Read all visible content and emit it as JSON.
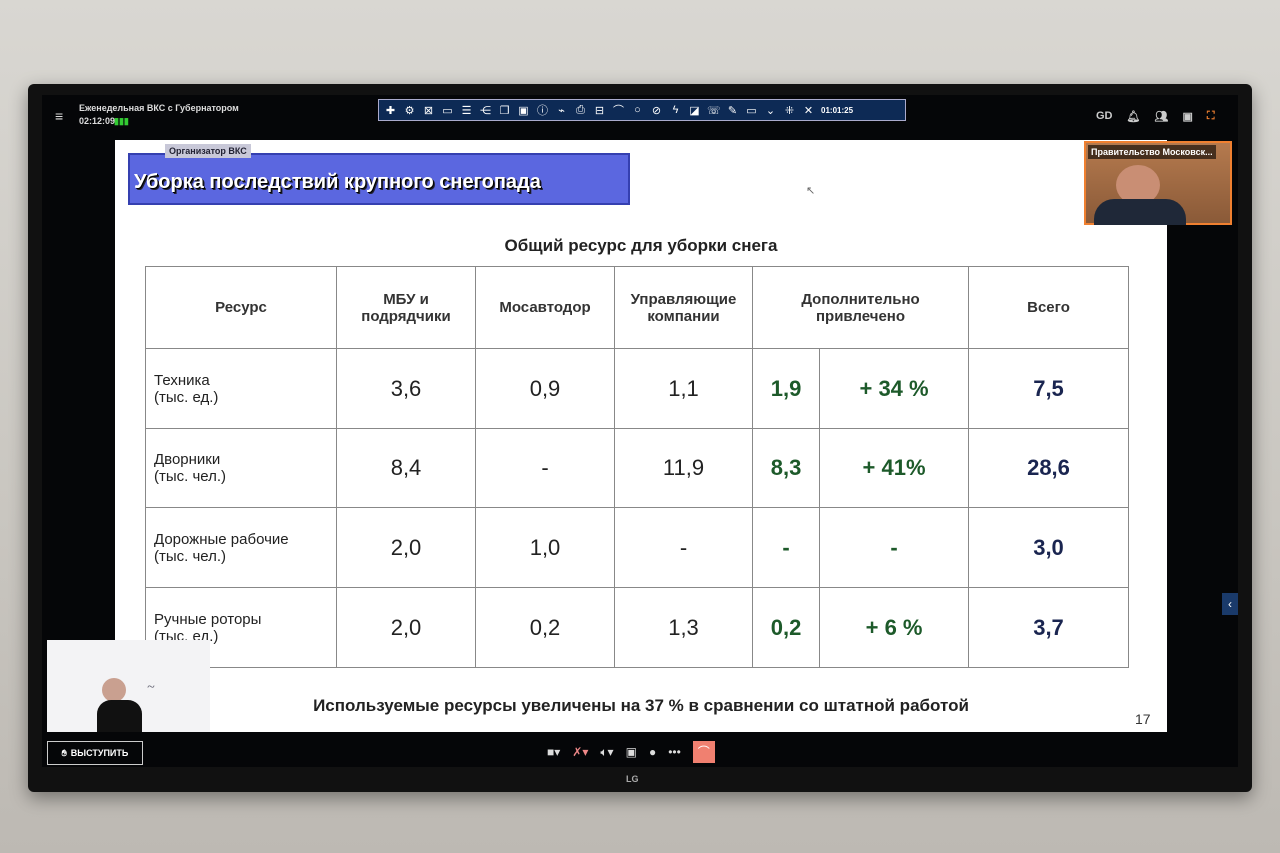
{
  "window": {
    "title": "Еженедельная ВКС с Губернатором",
    "elapsed": "02:12:09",
    "toolbar_timer": "01:01:25"
  },
  "toolbar_icons": [
    "move-icon",
    "settings-icon",
    "layout-icon",
    "folder-icon",
    "list-icon",
    "share-icon",
    "documents-icon",
    "calendar-icon",
    "info-icon",
    "plug-icon",
    "print-icon",
    "stack-icon",
    "signal-icon",
    "chat-icon",
    "mute-icon",
    "lightning-icon",
    "screen-icon",
    "phone-icon",
    "pointer-icon",
    "video-icon",
    "chevron-down-icon",
    "collapse-icon",
    "close-icon"
  ],
  "topright_icons": [
    "gd-icon",
    "bell-icon",
    "participants-icon",
    "display-icon",
    "fullscreen-icon"
  ],
  "organizer_label": "Организатор ВКС",
  "slide": {
    "title": "Уборка последствий крупного снегопада",
    "subtitle": "Общий ресурс для уборки снега",
    "headers": [
      "Ресурс",
      "МБУ и подрядчики",
      "Мосавтодор",
      "Управляющие компании",
      "Дополнительно привлечено",
      "Всего"
    ],
    "rows": [
      {
        "resource": "Техника (тыс. ед.)",
        "mbu": "3,6",
        "mosavtodor": "0,9",
        "uk": "1,1",
        "extra": "1,9",
        "extra_pct": "+ 34 %",
        "total": "7,5"
      },
      {
        "resource": "Дворники (тыс. чел.)",
        "mbu": "8,4",
        "mosavtodor": "-",
        "uk": "11,9",
        "extra": "8,3",
        "extra_pct": "+ 41%",
        "total": "28,6"
      },
      {
        "resource": "Дорожные рабочие (тыс. чел.)",
        "mbu": "2,0",
        "mosavtodor": "1,0",
        "uk": "-",
        "extra": "-",
        "extra_pct": "-",
        "total": "3,0"
      },
      {
        "resource": "Ручные роторы (тыс. ед.)",
        "mbu": "2,0",
        "mosavtodor": "0,2",
        "uk": "1,3",
        "extra": "0,2",
        "extra_pct": "+ 6 %",
        "total": "3,7"
      }
    ],
    "footnote": "Используемые ресурсы увеличены на 37 % в сравнении со штатной работой",
    "page": "17"
  },
  "participant": {
    "name": "Правительство Московск..."
  },
  "speak_button": "ВЫСТУПИТЬ",
  "brand": "LG",
  "colors": {
    "title_bg": "#5b67e0",
    "green": "#1d5a2a",
    "navy": "#1a2550",
    "hangup": "#f08070",
    "cam_border": "#f08030"
  }
}
